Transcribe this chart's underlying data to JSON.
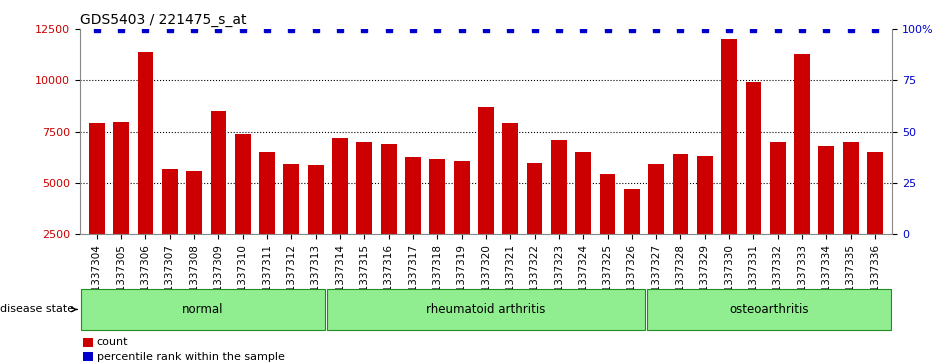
{
  "title": "GDS5403 / 221475_s_at",
  "samples": [
    "GSM1337304",
    "GSM1337305",
    "GSM1337306",
    "GSM1337307",
    "GSM1337308",
    "GSM1337309",
    "GSM1337310",
    "GSM1337311",
    "GSM1337312",
    "GSM1337313",
    "GSM1337314",
    "GSM1337315",
    "GSM1337316",
    "GSM1337317",
    "GSM1337318",
    "GSM1337319",
    "GSM1337320",
    "GSM1337321",
    "GSM1337322",
    "GSM1337323",
    "GSM1337324",
    "GSM1337325",
    "GSM1337326",
    "GSM1337327",
    "GSM1337328",
    "GSM1337329",
    "GSM1337330",
    "GSM1337331",
    "GSM1337332",
    "GSM1337333",
    "GSM1337334",
    "GSM1337335",
    "GSM1337336"
  ],
  "counts": [
    7900,
    7950,
    11400,
    5700,
    5600,
    8500,
    7400,
    6500,
    5900,
    5850,
    7200,
    7000,
    6900,
    6250,
    6150,
    6050,
    8700,
    7900,
    5950,
    7100,
    6500,
    5450,
    4700,
    5900,
    6400,
    6300,
    12000,
    9900,
    7000,
    11300,
    6800,
    7000,
    6500
  ],
  "percentile_ranks": [
    100,
    100,
    100,
    100,
    100,
    100,
    100,
    100,
    100,
    100,
    100,
    100,
    100,
    100,
    100,
    100,
    100,
    100,
    100,
    100,
    100,
    100,
    100,
    100,
    100,
    100,
    100,
    100,
    100,
    100,
    100,
    100,
    100
  ],
  "groups": [
    {
      "label": "normal",
      "start": 0,
      "end": 10
    },
    {
      "label": "rheumatoid arthritis",
      "start": 10,
      "end": 23
    },
    {
      "label": "osteoarthritis",
      "start": 23,
      "end": 33
    }
  ],
  "bar_color": "#cc0000",
  "percentile_color": "#0000cc",
  "group_color": "#90ee90",
  "group_border_color": "#228B22",
  "plot_bg_color": "#ffffff",
  "fig_bg_color": "#ffffff",
  "xtick_bg_color": "#d8d8d8",
  "ylim_left": [
    2500,
    12500
  ],
  "ylim_right": [
    0,
    100
  ],
  "yticks_left": [
    2500,
    5000,
    7500,
    10000,
    12500
  ],
  "yticks_right": [
    0,
    25,
    50,
    75,
    100
  ],
  "grid_values": [
    5000,
    7500,
    10000
  ],
  "title_fontsize": 10,
  "tick_label_fontsize": 7.5,
  "legend_fontsize": 8,
  "group_fontsize": 8.5
}
